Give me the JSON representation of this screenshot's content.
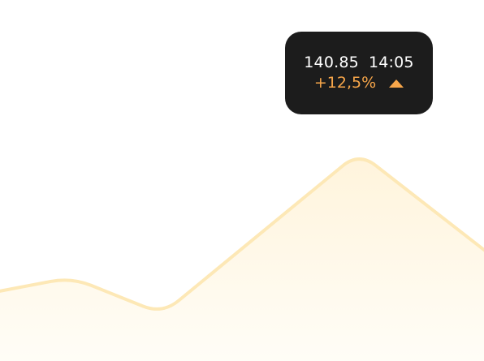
{
  "tooltip": {
    "price": "140.85",
    "time": "14:05",
    "change": "+12,5%",
    "trend_icon": "up-arrow-icon"
  },
  "colors": {
    "line": "#fde8b6",
    "area_top": "#fff4dc",
    "area_bottom": "#fffdf7",
    "guide": "#e3e3e3",
    "tooltip_bg": "#1c1c1c",
    "tooltip_text": "#ffffff",
    "accent": "#f7a64a"
  },
  "chart_data": {
    "type": "area",
    "x": [
      0,
      1,
      2,
      3,
      4
    ],
    "values": [
      20,
      28,
      7,
      100,
      41
    ],
    "ylim": [
      0,
      100
    ],
    "grid": false,
    "highlighted_index": 3
  }
}
